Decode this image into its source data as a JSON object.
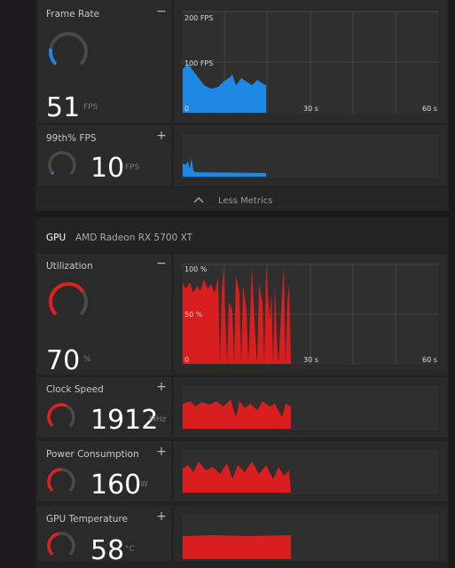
{
  "frame_rate": {
    "title": "Frame Rate",
    "toggle": "−",
    "value": 51,
    "unit": "FPS",
    "chart_labels": [
      "200 FPS",
      "100 FPS",
      "0",
      "30 s",
      "60 s"
    ]
  },
  "fps_99th": {
    "title": "99th% FPS",
    "toggle": "+",
    "value": 10,
    "unit": "FPS"
  },
  "less_metrics": "Less Metrics",
  "gpu": {
    "label": "GPU",
    "name": "AMD Radeon RX 5700 XT"
  },
  "utilization": {
    "title": "Utilization",
    "toggle": "−",
    "value": 70,
    "unit": "%",
    "chart_labels": [
      "100 %",
      "50 %",
      "0",
      "30 s",
      "60 s"
    ]
  },
  "clock_speed": {
    "title": "Clock Speed",
    "toggle": "+",
    "value": 1912,
    "unit": "MHz"
  },
  "power": {
    "title": "Power Consumption",
    "toggle": "+",
    "value": 160,
    "unit": "W"
  },
  "temperature": {
    "title": "GPU Temperature",
    "toggle": "+",
    "value": 58,
    "unit": "°C"
  }
}
